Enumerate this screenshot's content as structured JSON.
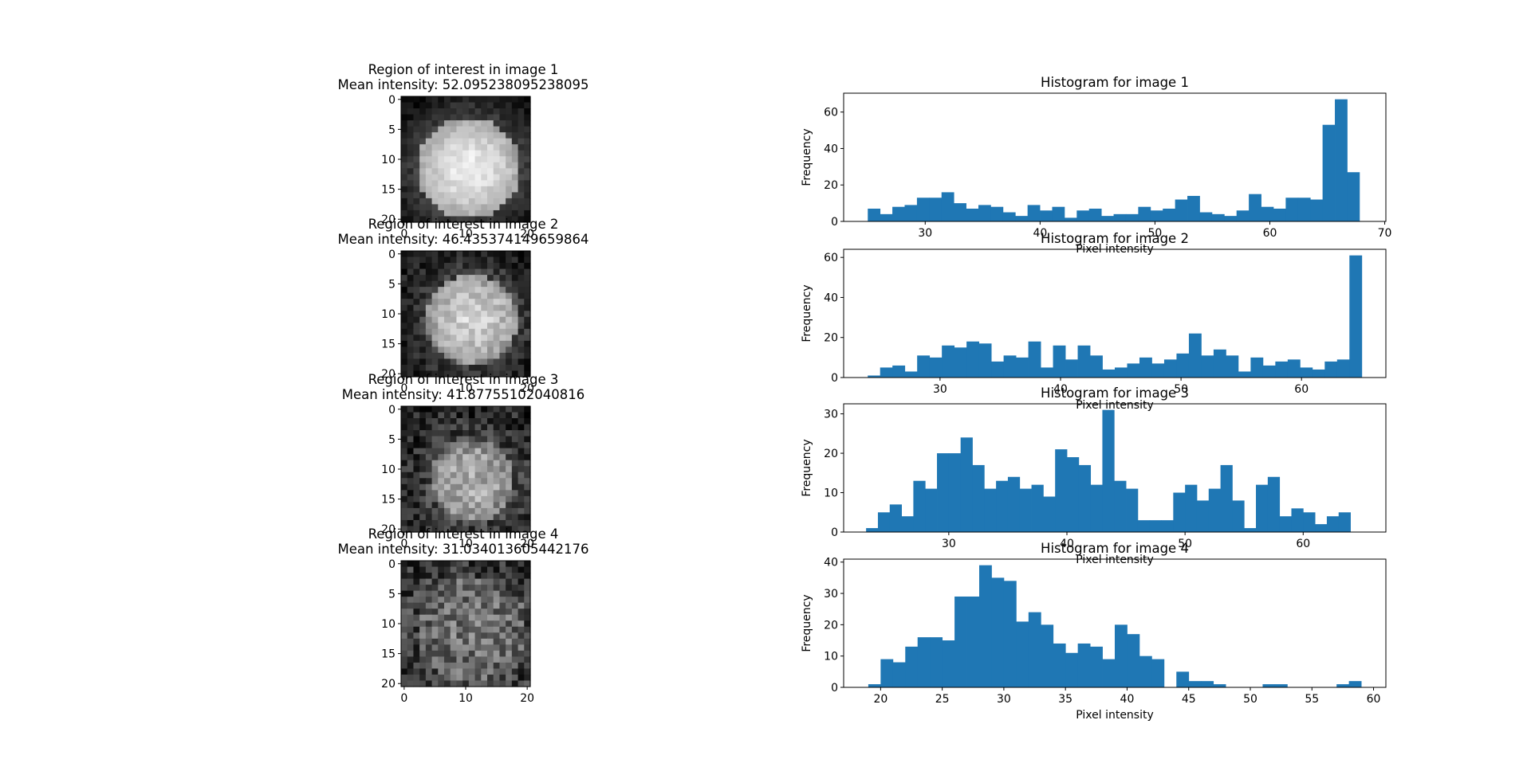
{
  "chart_data": [
    {
      "type": "heatmap",
      "title_line1": "Region of interest in image 1",
      "title_line2": "Mean intensity: 52.095238095238095",
      "colormap": "gray",
      "rows": 21,
      "cols": 21,
      "xticks": [
        0,
        10,
        20
      ],
      "yticks": [
        0,
        5,
        10,
        15,
        20
      ],
      "pattern": {
        "cx": 10.5,
        "cy": 11.5,
        "r": 8.5,
        "bright": 1.0,
        "noise": 0.15,
        "seed": 11
      }
    },
    {
      "type": "heatmap",
      "title_line1": "Region of interest in image 2",
      "title_line2": "Mean intensity: 46.435374149659864",
      "colormap": "gray",
      "rows": 21,
      "cols": 21,
      "xticks": [
        0,
        10,
        20
      ],
      "yticks": [
        0,
        5,
        10,
        15,
        20
      ],
      "pattern": {
        "cx": 11,
        "cy": 11,
        "r": 7.5,
        "bright": 0.95,
        "noise": 0.25,
        "seed": 23
      }
    },
    {
      "type": "heatmap",
      "title_line1": "Region of interest in image 3",
      "title_line2": "Mean intensity: 41.87755102040816",
      "colormap": "gray",
      "rows": 21,
      "cols": 21,
      "xticks": [
        0,
        10,
        20
      ],
      "yticks": [
        0,
        5,
        10,
        15,
        20
      ],
      "pattern": {
        "cx": 11,
        "cy": 12,
        "r": 7,
        "bright": 0.8,
        "noise": 0.35,
        "seed": 37
      }
    },
    {
      "type": "heatmap",
      "title_line1": "Region of interest in image 4",
      "title_line2": "Mean intensity: 31.034013605442176",
      "colormap": "gray",
      "rows": 21,
      "cols": 21,
      "xticks": [
        0,
        10,
        20
      ],
      "yticks": [
        0,
        5,
        10,
        15,
        20
      ],
      "pattern": {
        "cx": 11,
        "cy": 11,
        "r": 9,
        "bright": 0.45,
        "noise": 0.45,
        "seed": 53
      }
    },
    {
      "type": "bar",
      "title": "Histogram for image 1",
      "xlabel": "Pixel intensity",
      "ylabel": "Frequency",
      "color": "#1f77b4",
      "xlim": [
        22.9,
        70.1
      ],
      "ylim": [
        0,
        70.35
      ],
      "xticks": [
        30,
        40,
        50,
        60,
        70
      ],
      "yticks": [
        0,
        20,
        40,
        60
      ],
      "bin_start": 25.0,
      "bin_width": 1.07,
      "counts": [
        7,
        4,
        8,
        9,
        13,
        13,
        16,
        10,
        7,
        9,
        8,
        5,
        3,
        9,
        6,
        8,
        2,
        6,
        7,
        3,
        4,
        4,
        8,
        6,
        7,
        12,
        14,
        5,
        4,
        3,
        6,
        15,
        8,
        7,
        13,
        13,
        12,
        53,
        67,
        27
      ]
    },
    {
      "type": "bar",
      "title": "Histogram for image 2",
      "xlabel": "Pixel intensity",
      "ylabel": "Frequency",
      "color": "#1f77b4",
      "xlim": [
        22.0,
        67.0
      ],
      "ylim": [
        0,
        64.05
      ],
      "xticks": [
        30,
        40,
        50,
        60
      ],
      "yticks": [
        0,
        20,
        40,
        60
      ],
      "bin_start": 24.0,
      "bin_width": 1.025,
      "counts": [
        1,
        5,
        6,
        3,
        11,
        10,
        16,
        15,
        18,
        17,
        8,
        11,
        10,
        18,
        5,
        16,
        9,
        16,
        11,
        4,
        5,
        7,
        10,
        7,
        9,
        12,
        22,
        11,
        14,
        11,
        3,
        10,
        6,
        8,
        9,
        5,
        4,
        8,
        9,
        61
      ]
    },
    {
      "type": "bar",
      "title": "Histogram for image 3",
      "xlabel": "Pixel intensity",
      "ylabel": "Frequency",
      "color": "#1f77b4",
      "xlim": [
        21.1,
        67.0
      ],
      "ylim": [
        0,
        32.55
      ],
      "xticks": [
        30,
        40,
        50,
        60
      ],
      "yticks": [
        0,
        10,
        20,
        30
      ],
      "bin_start": 23.0,
      "bin_width": 1.0,
      "counts": [
        1,
        5,
        7,
        4,
        13,
        11,
        20,
        20,
        24,
        17,
        11,
        13,
        14,
        11,
        12,
        9,
        21,
        19,
        17,
        12,
        31,
        13,
        11,
        3,
        3,
        3,
        10,
        12,
        8,
        11,
        17,
        8,
        1,
        12,
        14,
        4,
        6,
        5,
        2,
        4,
        5
      ]
    },
    {
      "type": "bar",
      "title": "Histogram for image 4",
      "xlabel": "Pixel intensity",
      "ylabel": "Frequency",
      "color": "#1f77b4",
      "xlim": [
        17.0,
        61.0
      ],
      "ylim": [
        0,
        40.95
      ],
      "xticks": [
        20,
        25,
        30,
        35,
        40,
        45,
        50,
        55,
        60
      ],
      "yticks": [
        0,
        10,
        20,
        30,
        40
      ],
      "bin_start": 19.0,
      "bin_width": 1.0,
      "counts": [
        1,
        9,
        8,
        13,
        16,
        16,
        15,
        29,
        29,
        39,
        35,
        34,
        21,
        24,
        20,
        14,
        11,
        14,
        13,
        9,
        20,
        17,
        10,
        9,
        0,
        5,
        2,
        2,
        1,
        0,
        0,
        0,
        1,
        1,
        0,
        0,
        0,
        0,
        1,
        2
      ]
    }
  ]
}
